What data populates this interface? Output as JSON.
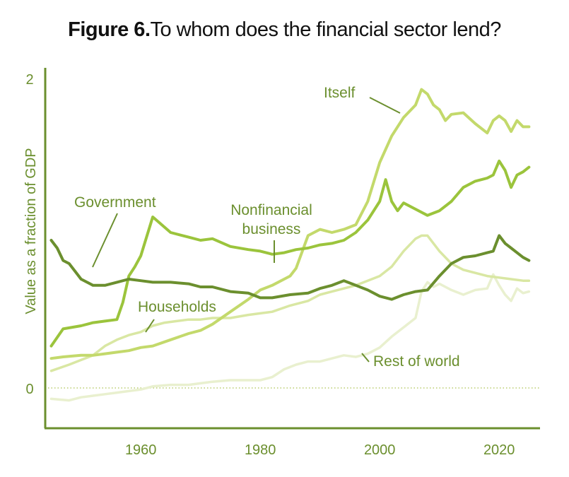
{
  "title": {
    "figure_label": "Figure 6.",
    "text": "To whom does the financial sector lend?"
  },
  "colors": {
    "axis": "#6b8f2e",
    "itself": "#c3d96b",
    "nonfinancial_business": "#9bc43c",
    "government": "#6b8f2e",
    "households": "#d9e7a3",
    "rest_of_world": "#e9f0cf",
    "zero_line": "#b8cc6e",
    "label_text": "#6b8f2e"
  },
  "chart_data": {
    "type": "line",
    "title": "Figure 6. To whom does the financial sector lend?",
    "xlabel": "",
    "ylabel": "Value as a fraction of GDP",
    "xlim": [
      1944,
      2025
    ],
    "ylim": [
      -0.25,
      2.0
    ],
    "x_ticks": [
      "1960",
      "1980",
      "2000",
      "2020"
    ],
    "y_ticks": [
      "0",
      "2"
    ],
    "zero_line": "dotted",
    "grid": false,
    "legend": "inline labels",
    "series": [
      {
        "name": "Itself",
        "x": [
          1945,
          1947,
          1950,
          1952,
          1954,
          1956,
          1958,
          1960,
          1962,
          1965,
          1968,
          1970,
          1972,
          1975,
          1978,
          1980,
          1982,
          1984,
          1985,
          1986,
          1988,
          1990,
          1992,
          1994,
          1996,
          1998,
          2000,
          2002,
          2004,
          2006,
          2007,
          2008,
          2009,
          2010,
          2011,
          2012,
          2014,
          2016,
          2018,
          2019,
          2020,
          2021,
          2022,
          2023,
          2024,
          2025
        ],
        "y": [
          0.19,
          0.2,
          0.21,
          0.21,
          0.22,
          0.23,
          0.24,
          0.26,
          0.27,
          0.31,
          0.35,
          0.37,
          0.41,
          0.49,
          0.57,
          0.63,
          0.66,
          0.7,
          0.72,
          0.77,
          0.98,
          1.02,
          1.0,
          1.02,
          1.05,
          1.2,
          1.45,
          1.62,
          1.74,
          1.82,
          1.92,
          1.89,
          1.82,
          1.79,
          1.72,
          1.76,
          1.77,
          1.7,
          1.64,
          1.72,
          1.75,
          1.72,
          1.65,
          1.72,
          1.68,
          1.68
        ]
      },
      {
        "name": "Nonfinancial business",
        "x": [
          1945,
          1947,
          1950,
          1952,
          1954,
          1956,
          1957,
          1958,
          1959,
          1960,
          1962,
          1965,
          1968,
          1970,
          1972,
          1975,
          1978,
          1980,
          1982,
          1984,
          1986,
          1988,
          1990,
          1992,
          1994,
          1996,
          1998,
          2000,
          2001,
          2002,
          2003,
          2004,
          2006,
          2008,
          2010,
          2012,
          2014,
          2016,
          2018,
          2019,
          2020,
          2021,
          2022,
          2023,
          2024,
          2025
        ],
        "y": [
          0.27,
          0.38,
          0.4,
          0.42,
          0.43,
          0.44,
          0.55,
          0.72,
          0.78,
          0.85,
          1.1,
          1.0,
          0.97,
          0.95,
          0.96,
          0.91,
          0.89,
          0.88,
          0.86,
          0.87,
          0.89,
          0.9,
          0.92,
          0.93,
          0.95,
          1.0,
          1.08,
          1.2,
          1.34,
          1.2,
          1.14,
          1.19,
          1.15,
          1.11,
          1.14,
          1.2,
          1.29,
          1.33,
          1.35,
          1.37,
          1.46,
          1.4,
          1.29,
          1.37,
          1.39,
          1.42
        ]
      },
      {
        "name": "Government",
        "x": [
          1945,
          1946,
          1947,
          1948,
          1949,
          1950,
          1952,
          1954,
          1956,
          1958,
          1960,
          1962,
          1965,
          1968,
          1970,
          1972,
          1975,
          1978,
          1980,
          1982,
          1985,
          1988,
          1990,
          1992,
          1994,
          1996,
          1998,
          2000,
          2002,
          2004,
          2006,
          2008,
          2010,
          2012,
          2014,
          2016,
          2018,
          2019,
          2020,
          2021,
          2022,
          2023,
          2024,
          2025
        ],
        "y": [
          0.95,
          0.9,
          0.82,
          0.8,
          0.75,
          0.7,
          0.66,
          0.66,
          0.68,
          0.7,
          0.69,
          0.68,
          0.68,
          0.67,
          0.65,
          0.65,
          0.62,
          0.61,
          0.58,
          0.58,
          0.6,
          0.61,
          0.64,
          0.66,
          0.69,
          0.66,
          0.63,
          0.59,
          0.57,
          0.6,
          0.62,
          0.63,
          0.72,
          0.8,
          0.84,
          0.85,
          0.87,
          0.88,
          0.98,
          0.93,
          0.9,
          0.87,
          0.84,
          0.82
        ]
      },
      {
        "name": "Households",
        "x": [
          1945,
          1948,
          1950,
          1952,
          1954,
          1956,
          1958,
          1960,
          1962,
          1964,
          1966,
          1968,
          1970,
          1972,
          1975,
          1978,
          1980,
          1982,
          1985,
          1988,
          1990,
          1992,
          1994,
          1996,
          1998,
          2000,
          2002,
          2004,
          2006,
          2007,
          2008,
          2010,
          2012,
          2014,
          2016,
          2018,
          2020,
          2022,
          2024,
          2025
        ],
        "y": [
          0.11,
          0.15,
          0.18,
          0.21,
          0.27,
          0.31,
          0.34,
          0.36,
          0.4,
          0.42,
          0.43,
          0.44,
          0.44,
          0.45,
          0.45,
          0.47,
          0.48,
          0.49,
          0.53,
          0.56,
          0.6,
          0.62,
          0.64,
          0.66,
          0.69,
          0.72,
          0.78,
          0.88,
          0.96,
          0.98,
          0.98,
          0.88,
          0.8,
          0.76,
          0.74,
          0.72,
          0.71,
          0.7,
          0.69,
          0.69
        ]
      },
      {
        "name": "Rest of world",
        "x": [
          1945,
          1948,
          1950,
          1952,
          1954,
          1956,
          1958,
          1960,
          1962,
          1965,
          1968,
          1970,
          1972,
          1975,
          1978,
          1980,
          1982,
          1984,
          1986,
          1988,
          1990,
          1992,
          1994,
          1996,
          1998,
          2000,
          2002,
          2004,
          2006,
          2007,
          2008,
          2009,
          2010,
          2012,
          2014,
          2016,
          2018,
          2019,
          2020,
          2021,
          2022,
          2023,
          2024,
          2025
        ],
        "y": [
          -0.07,
          -0.08,
          -0.06,
          -0.05,
          -0.04,
          -0.03,
          -0.02,
          -0.01,
          0.01,
          0.02,
          0.02,
          0.03,
          0.04,
          0.05,
          0.05,
          0.05,
          0.07,
          0.12,
          0.15,
          0.17,
          0.17,
          0.19,
          0.21,
          0.2,
          0.22,
          0.26,
          0.33,
          0.39,
          0.45,
          0.62,
          0.68,
          0.65,
          0.67,
          0.63,
          0.6,
          0.63,
          0.64,
          0.73,
          0.66,
          0.6,
          0.56,
          0.64,
          0.61,
          0.62
        ]
      }
    ],
    "annotations": [
      {
        "text": "Itself",
        "series": "Itself"
      },
      {
        "text": "Nonfinancial",
        "text2": "business",
        "series": "Nonfinancial business"
      },
      {
        "text": "Government",
        "series": "Government"
      },
      {
        "text": "Households",
        "series": "Households"
      },
      {
        "text": "Rest of world",
        "series": "Rest of world"
      }
    ]
  }
}
